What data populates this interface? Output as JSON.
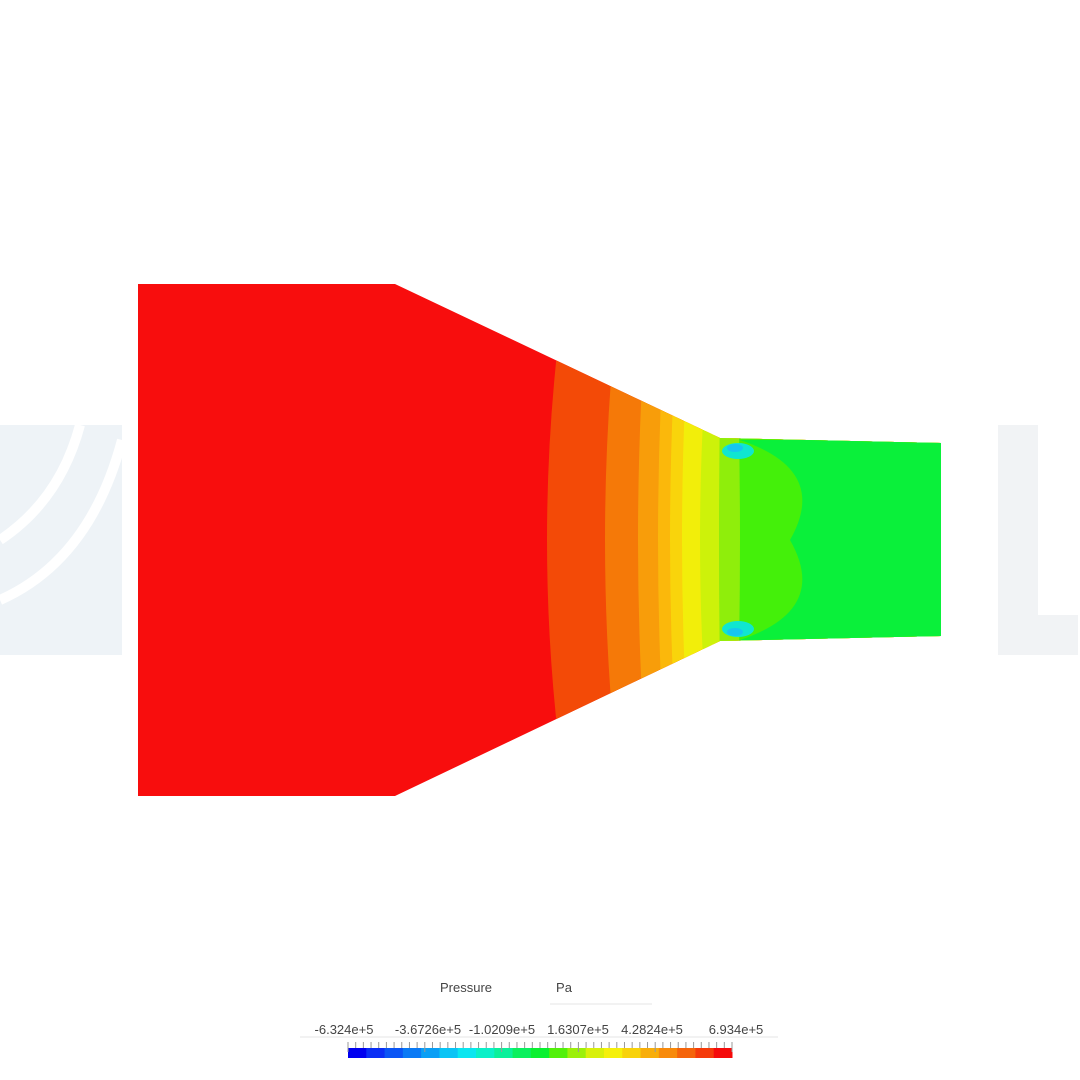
{
  "legend": {
    "title": "Pressure",
    "unit": "Pa",
    "labels": [
      "-6.324e+5",
      "-3.6726e+5",
      "-1.0209e+5",
      "1.6307e+5",
      "4.2824e+5",
      "6.934e+5"
    ]
  }
}
